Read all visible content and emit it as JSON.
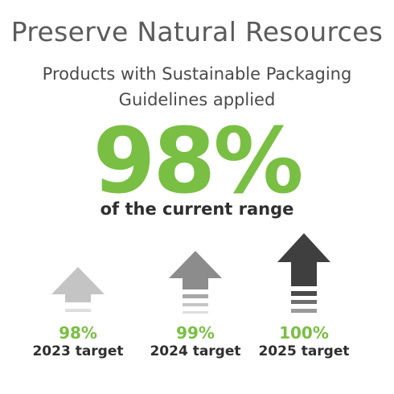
{
  "title": "Preserve Natural Resources",
  "subtitle_line1": "Products with Sustainable Packaging",
  "subtitle_line2": "Guidelines applied",
  "headline_value": "98%",
  "headline_caption": "of the current range",
  "colors": {
    "accent_green": "#79bf43",
    "text_dark": "#2f2f2f",
    "title_gray": "#5b5b5b"
  },
  "targets": [
    {
      "value": "98%",
      "label": "2023 target",
      "icon": "arrow-up-icon",
      "color": "#c4c4c4"
    },
    {
      "value": "99%",
      "label": "2024 target",
      "icon": "arrow-up-icon",
      "color": "#8c8c8c"
    },
    {
      "value": "100%",
      "label": "2025 target",
      "icon": "arrow-up-icon",
      "color": "#3f3f3f"
    }
  ]
}
